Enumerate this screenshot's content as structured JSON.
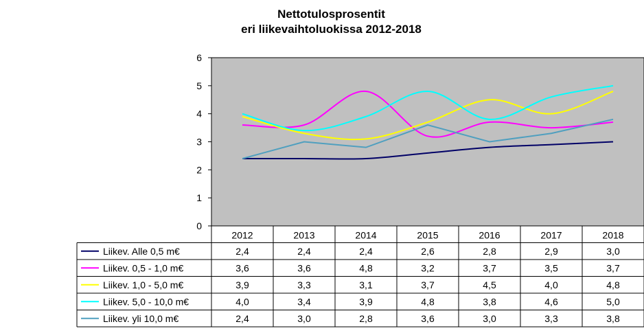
{
  "chart_data": {
    "type": "line",
    "title_line1": "Nettotulosprosentit",
    "title_line2": "eri liikevaihtoluokissa 2012-2018",
    "categories": [
      "2012",
      "2013",
      "2014",
      "2015",
      "2016",
      "2017",
      "2018"
    ],
    "ylim": [
      0,
      6
    ],
    "yticks": [
      0,
      1,
      2,
      3,
      4,
      5,
      6
    ],
    "plot_background": "#c0c0c0",
    "grid": false,
    "legend": "data-table-below",
    "series": [
      {
        "name": "Liikev. Alle 0,5 m€",
        "color": "#000066",
        "smooth": true,
        "values": [
          2.4,
          2.4,
          2.4,
          2.6,
          2.8,
          2.9,
          3.0
        ],
        "labels": [
          "2,4",
          "2,4",
          "2,4",
          "2,6",
          "2,8",
          "2,9",
          "3,0"
        ]
      },
      {
        "name": "Liikev. 0,5 - 1,0 m€",
        "color": "#ff00ff",
        "smooth": true,
        "values": [
          3.6,
          3.6,
          4.8,
          3.2,
          3.7,
          3.5,
          3.7
        ],
        "labels": [
          "3,6",
          "3,6",
          "4,8",
          "3,2",
          "3,7",
          "3,5",
          "3,7"
        ]
      },
      {
        "name": "Liikev. 1,0 - 5,0 m€",
        "color": "#ffff00",
        "smooth": true,
        "values": [
          3.9,
          3.3,
          3.1,
          3.7,
          4.5,
          4.0,
          4.8
        ],
        "labels": [
          "3,9",
          "3,3",
          "3,1",
          "3,7",
          "4,5",
          "4,0",
          "4,8"
        ]
      },
      {
        "name": "Liikev. 5,0 - 10,0 m€",
        "color": "#00ffff",
        "smooth": true,
        "values": [
          4.0,
          3.4,
          3.9,
          4.8,
          3.8,
          4.6,
          5.0
        ],
        "labels": [
          "4,0",
          "3,4",
          "3,9",
          "4,8",
          "3,8",
          "4,6",
          "5,0"
        ]
      },
      {
        "name": "Liikev. yli 10,0 m€",
        "color": "#4f9fbf",
        "smooth": false,
        "values": [
          2.4,
          3.0,
          2.8,
          3.6,
          3.0,
          3.3,
          3.8
        ],
        "labels": [
          "2,4",
          "3,0",
          "2,8",
          "3,6",
          "3,0",
          "3,3",
          "3,8"
        ]
      }
    ]
  }
}
